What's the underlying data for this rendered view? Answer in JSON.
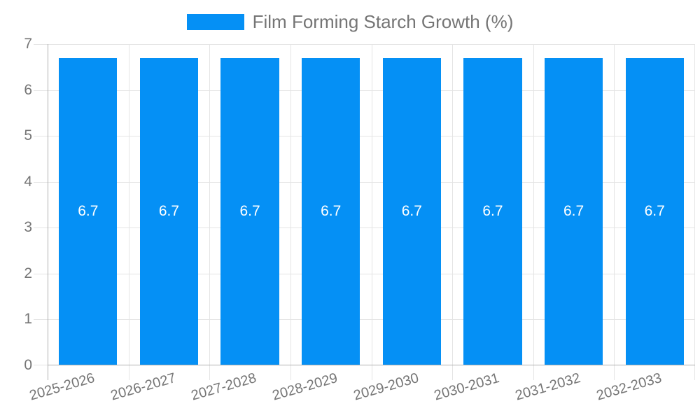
{
  "chart_data": {
    "type": "bar",
    "title": "Film Forming Starch Growth (%)",
    "legend": {
      "label": "Film Forming Starch Growth (%)",
      "position": "top"
    },
    "categories": [
      "2025-2026",
      "2026-2027",
      "2027-2028",
      "2028-2029",
      "2029-2030",
      "2030-2031",
      "2031-2032",
      "2032-2033"
    ],
    "values": [
      6.7,
      6.7,
      6.7,
      6.7,
      6.7,
      6.7,
      6.7,
      6.7
    ],
    "value_labels": [
      "6.7",
      "6.7",
      "6.7",
      "6.7",
      "6.7",
      "6.7",
      "6.7",
      "6.7"
    ],
    "xlabel": "",
    "ylabel": "",
    "ylim": [
      0,
      7
    ],
    "ytick_interval": 1,
    "yticks": [
      0,
      1,
      2,
      3,
      4,
      5,
      6,
      7
    ],
    "grid": true,
    "x_label_rotation_deg": -16
  },
  "colors": {
    "bar": "#0590F5",
    "value_label": "#FFFFFF",
    "axis_line": "#B0B0B0",
    "gridline": "#E4E4E4",
    "tick_label": "#757575",
    "legend_label": "#757575",
    "background": "#FFFFFF"
  }
}
